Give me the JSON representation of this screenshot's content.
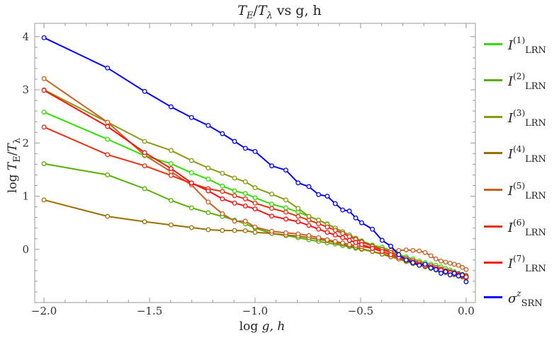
{
  "chart_data": {
    "type": "line",
    "title": {
      "t1": "T",
      "s1": "E",
      "slash": "/",
      "t2": "T",
      "s2": "λ",
      "rest": " vs g, h"
    },
    "xlabel": {
      "prefix": "log ",
      "var": "g, h"
    },
    "ylabel": {
      "prefix": "log ",
      "t1": "T",
      "s1": "E",
      "slash": "/",
      "t2": "T",
      "s2": "λ"
    },
    "xlim": [
      -2.044,
      0.044
    ],
    "ylim": [
      -1.0,
      4.25
    ],
    "x_ticks": [
      "−2.0",
      "−1.5",
      "−1.0",
      "−0.5",
      "0.0"
    ],
    "x_tick_values": [
      -2.0,
      -1.5,
      -1.0,
      -0.5,
      0.0
    ],
    "y_ticks": [
      "0",
      "1",
      "2",
      "3",
      "4"
    ],
    "y_tick_values": [
      0,
      1,
      2,
      3,
      4
    ],
    "grid": false,
    "legend_position": "right",
    "markers": "open-circle",
    "x": [
      -2.0,
      -1.699,
      -1.523,
      -1.398,
      -1.301,
      -1.222,
      -1.155,
      -1.097,
      -1.046,
      -1.0,
      -0.921,
      -0.854,
      -0.796,
      -0.745,
      -0.699,
      -0.658,
      -0.62,
      -0.585,
      -0.553,
      -0.523,
      -0.495,
      -0.444,
      -0.398,
      -0.357,
      -0.319,
      -0.284,
      -0.252,
      -0.222,
      -0.194,
      -0.167,
      -0.143,
      -0.119,
      -0.097,
      -0.076,
      -0.056,
      -0.036,
      -0.018,
      0.0
    ],
    "series": [
      {
        "name": {
          "base": "I",
          "sup": "(1)",
          "sub": "LRN"
        },
        "color": "#33dd00",
        "values": [
          2.58,
          2.07,
          1.76,
          1.61,
          1.44,
          1.32,
          1.19,
          1.1,
          1.05,
          0.97,
          0.85,
          0.78,
          0.7,
          0.62,
          0.55,
          0.48,
          0.4,
          0.33,
          0.27,
          0.21,
          0.16,
          0.08,
          0.04,
          -0.02,
          -0.1,
          -0.14,
          -0.18,
          -0.22,
          -0.25,
          -0.28,
          -0.3,
          -0.33,
          -0.36,
          -0.39,
          -0.42,
          -0.45,
          -0.47,
          -0.49
        ]
      },
      {
        "name": {
          "base": "I",
          "sup": "(2)",
          "sub": "LRN"
        },
        "color": "#55b000",
        "values": [
          1.61,
          1.4,
          1.14,
          0.92,
          0.78,
          0.69,
          0.62,
          0.55,
          0.48,
          0.4,
          0.3,
          0.26,
          0.22,
          0.18,
          0.15,
          0.12,
          0.1,
          0.07,
          0.05,
          0.02,
          0.0,
          -0.04,
          -0.08,
          -0.13,
          -0.18,
          -0.23,
          -0.27,
          -0.3,
          -0.33,
          -0.36,
          -0.39,
          -0.41,
          -0.44,
          -0.46,
          -0.48,
          -0.5,
          -0.52,
          -0.54
        ]
      },
      {
        "name": {
          "base": "I",
          "sup": "(3)",
          "sub": "LRN"
        },
        "color": "#8a9a10",
        "values": [
          3.0,
          2.39,
          2.03,
          1.86,
          1.67,
          1.53,
          1.43,
          1.34,
          1.27,
          1.16,
          1.04,
          0.93,
          0.77,
          0.62,
          0.55,
          0.47,
          0.4,
          0.33,
          0.27,
          0.21,
          0.15,
          0.07,
          0.0,
          -0.06,
          -0.12,
          -0.17,
          -0.22,
          -0.26,
          -0.3,
          -0.33,
          -0.36,
          -0.39,
          -0.42,
          -0.44,
          -0.47,
          -0.49,
          -0.51,
          -0.52
        ]
      },
      {
        "name": {
          "base": "I",
          "sup": "(4)",
          "sub": "LRN"
        },
        "color": "#9a7000",
        "values": [
          0.93,
          0.62,
          0.52,
          0.46,
          0.41,
          0.37,
          0.355,
          0.355,
          0.35,
          0.32,
          0.3,
          0.27,
          0.25,
          0.22,
          0.19,
          0.16,
          0.13,
          0.1,
          0.07,
          0.04,
          0.01,
          -0.04,
          -0.09,
          -0.14,
          -0.18,
          -0.22,
          -0.26,
          -0.29,
          -0.32,
          -0.35,
          -0.38,
          -0.4,
          -0.43,
          -0.45,
          -0.47,
          -0.49,
          -0.51,
          -0.53
        ]
      },
      {
        "name": {
          "base": "I",
          "sup": "(5)",
          "sub": "LRN"
        },
        "color": "#c86020",
        "values": [
          3.21,
          2.39,
          1.77,
          1.46,
          1.21,
          0.89,
          0.67,
          0.53,
          0.53,
          0.42,
          0.34,
          0.31,
          0.29,
          0.26,
          0.22,
          0.18,
          0.15,
          0.12,
          0.09,
          0.07,
          0.05,
          0.02,
          0.0,
          -0.02,
          -0.02,
          -0.01,
          -0.02,
          -0.03,
          -0.06,
          -0.12,
          -0.18,
          -0.22,
          -0.24,
          -0.26,
          -0.28,
          -0.3,
          -0.34,
          -0.38
        ]
      },
      {
        "name": {
          "base": "I",
          "sup": "(6)",
          "sub": "LRN"
        },
        "color": "#e83010",
        "values": [
          2.3,
          1.78,
          1.57,
          1.39,
          1.24,
          1.14,
          1.09,
          1.01,
          0.95,
          0.87,
          0.77,
          0.7,
          0.62,
          0.55,
          0.48,
          0.42,
          0.36,
          0.3,
          0.24,
          0.19,
          0.14,
          0.06,
          0.0,
          -0.06,
          -0.12,
          -0.17,
          -0.21,
          -0.25,
          -0.28,
          -0.31,
          -0.34,
          -0.37,
          -0.4,
          -0.42,
          -0.44,
          -0.46,
          -0.48,
          -0.5
        ]
      },
      {
        "name": {
          "base": "I",
          "sup": "(7)",
          "sub": "LRN"
        },
        "color": "#ff1010",
        "values": [
          2.99,
          2.31,
          1.82,
          1.52,
          1.25,
          1.1,
          0.95,
          0.87,
          0.815,
          0.76,
          0.625,
          0.57,
          0.52,
          0.45,
          0.38,
          0.32,
          0.27,
          0.22,
          0.17,
          0.13,
          0.09,
          0.02,
          -0.04,
          -0.1,
          -0.15,
          -0.2,
          -0.24,
          -0.28,
          -0.31,
          -0.34,
          -0.37,
          -0.39,
          -0.42,
          -0.44,
          -0.46,
          -0.48,
          -0.5,
          -0.52
        ]
      },
      {
        "name": {
          "base": "σ",
          "sup": "z",
          "sub": "SRN"
        },
        "color": "#0000ff",
        "values": [
          3.98,
          3.41,
          2.97,
          2.68,
          2.48,
          2.33,
          2.175,
          2.03,
          1.9,
          1.84,
          1.57,
          1.49,
          1.25,
          1.18,
          1.03,
          1.0,
          0.86,
          0.74,
          0.72,
          0.59,
          0.5,
          0.38,
          0.17,
          0.06,
          -0.1,
          -0.2,
          -0.25,
          -0.3,
          -0.28,
          -0.35,
          -0.38,
          -0.45,
          -0.42,
          -0.48,
          -0.45,
          -0.5,
          -0.48,
          -0.61
        ]
      }
    ]
  }
}
